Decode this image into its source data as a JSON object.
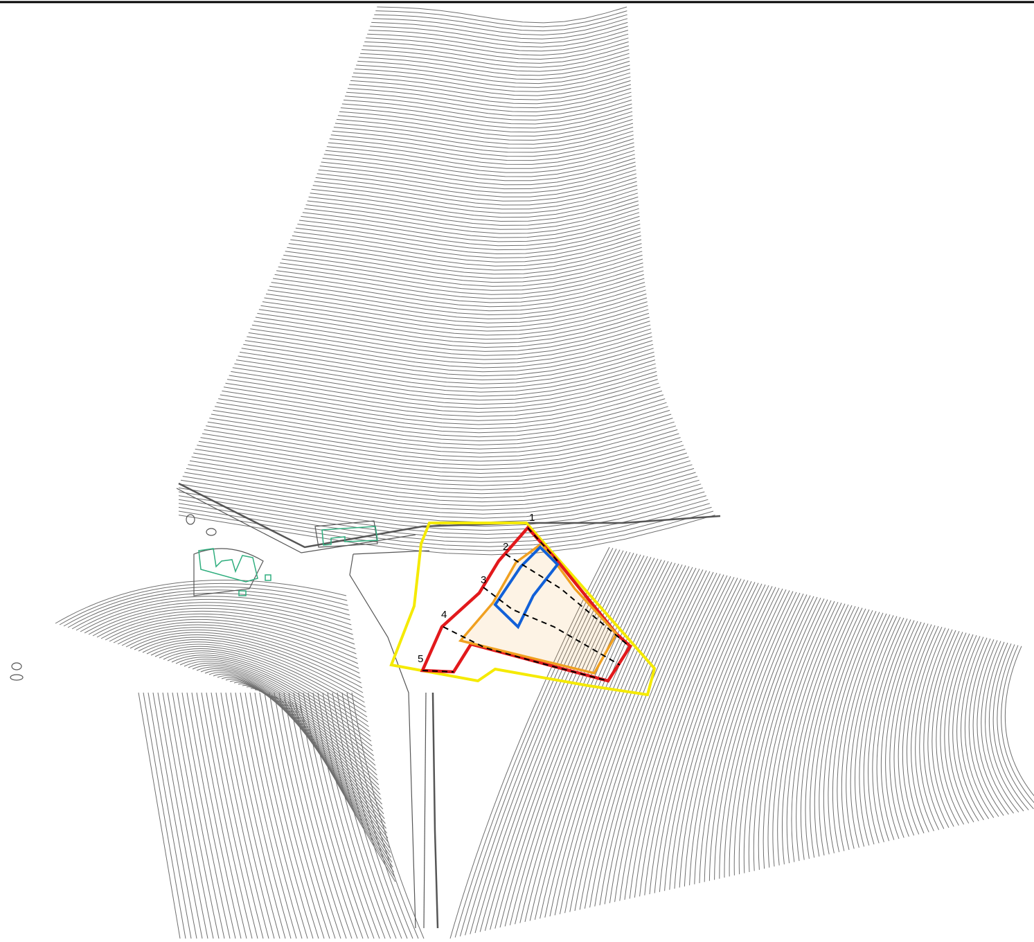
{
  "section_labels": [
    "1",
    "2",
    "3",
    "4",
    "5"
  ]
}
